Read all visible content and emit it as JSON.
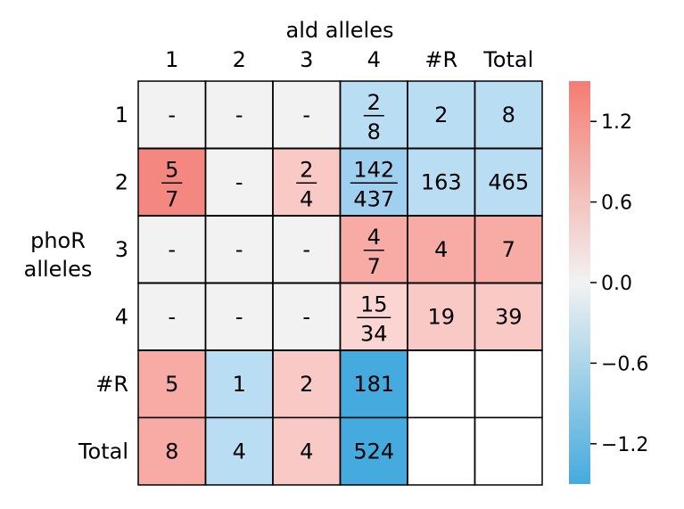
{
  "chart_data": {
    "type": "heatmap",
    "title": "ald alleles",
    "xlabel": "ald alleles",
    "ylabel": "phoR alleles",
    "xlabel_lines": [
      "ald alleles"
    ],
    "ylabel_lines": [
      "phoR",
      "alleles"
    ],
    "col_labels": [
      "1",
      "2",
      "3",
      "4",
      "#R",
      "Total"
    ],
    "row_labels": [
      "1",
      "2",
      "3",
      "4",
      "#R",
      "Total"
    ],
    "cells": [
      [
        {
          "type": "dash",
          "text": "-"
        },
        {
          "type": "dash",
          "text": "-"
        },
        {
          "type": "dash",
          "text": "-"
        },
        {
          "type": "frac",
          "num": "2",
          "den": "8",
          "color": "#b9def3"
        },
        {
          "type": "text",
          "text": "2",
          "color": "#b9def3"
        },
        {
          "type": "text",
          "text": "8",
          "color": "#b9def3"
        }
      ],
      [
        {
          "type": "frac",
          "num": "5",
          "den": "7",
          "color": "#f4877f"
        },
        {
          "type": "dash",
          "text": "-"
        },
        {
          "type": "frac",
          "num": "2",
          "den": "4",
          "color": "#f9c9c5"
        },
        {
          "type": "frac",
          "num": "142",
          "den": "437",
          "color": "#9fd0ef"
        },
        {
          "type": "text",
          "text": "163",
          "color": "#b9def3"
        },
        {
          "type": "text",
          "text": "465",
          "color": "#b9def3"
        }
      ],
      [
        {
          "type": "dash",
          "text": "-"
        },
        {
          "type": "dash",
          "text": "-"
        },
        {
          "type": "dash",
          "text": "-"
        },
        {
          "type": "frac",
          "num": "4",
          "den": "7",
          "color": "#f8aba5"
        },
        {
          "type": "text",
          "text": "4",
          "color": "#f8aba5"
        },
        {
          "type": "text",
          "text": "7",
          "color": "#f8aba5"
        }
      ],
      [
        {
          "type": "dash",
          "text": "-"
        },
        {
          "type": "dash",
          "text": "-"
        },
        {
          "type": "dash",
          "text": "-"
        },
        {
          "type": "frac",
          "num": "15",
          "den": "34",
          "color": "#fbd5d2"
        },
        {
          "type": "text",
          "text": "19",
          "color": "#f9c9c5"
        },
        {
          "type": "text",
          "text": "39",
          "color": "#f9c9c5"
        }
      ],
      [
        {
          "type": "text",
          "text": "5",
          "color": "#f8aba5"
        },
        {
          "type": "text",
          "text": "1",
          "color": "#b9def3"
        },
        {
          "type": "text",
          "text": "2",
          "color": "#f9c9c5"
        },
        {
          "type": "text",
          "text": "181",
          "color": "#45aade"
        },
        {
          "type": "empty"
        },
        {
          "type": "empty"
        }
      ],
      [
        {
          "type": "text",
          "text": "8",
          "color": "#f8aba5"
        },
        {
          "type": "text",
          "text": "4",
          "color": "#b9def3"
        },
        {
          "type": "text",
          "text": "4",
          "color": "#f9c9c5"
        },
        {
          "type": "text",
          "text": "524",
          "color": "#45aade"
        },
        {
          "type": "empty"
        },
        {
          "type": "empty"
        }
      ]
    ],
    "dash_color": "#f2f2f2",
    "empty_color": "#ffffff",
    "colorbar": {
      "range": [
        -1.5,
        1.5
      ],
      "ticks": [
        1.2,
        0.6,
        0.0,
        -0.6,
        -1.2
      ],
      "tick_labels": [
        "1.2",
        "0.6",
        "0.0",
        "−0.6",
        "−1.2"
      ],
      "colors": {
        "top": "#f47c73",
        "middle": "#f2f2f2",
        "bottom": "#45aade"
      }
    },
    "grid": true
  }
}
